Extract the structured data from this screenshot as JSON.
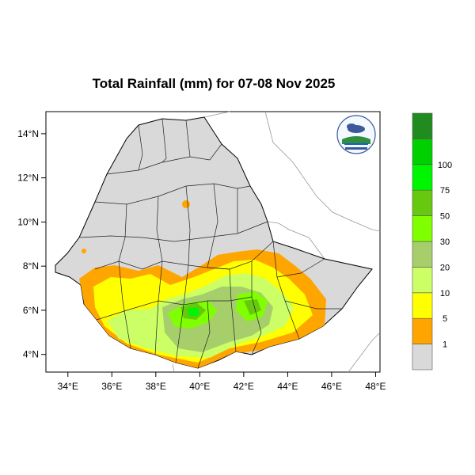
{
  "title": "Total Rainfall (mm) for 07-08 Nov 2025",
  "map": {
    "region": "Ethiopia",
    "lon_range": [
      33,
      48.2
    ],
    "lat_range": [
      3.2,
      15
    ],
    "x_ticks": [
      "34°E",
      "36°E",
      "38°E",
      "40°E",
      "42°E",
      "44°E",
      "46°E",
      "48°E"
    ],
    "y_ticks": [
      "14°N",
      "12°N",
      "10°N",
      "8°N",
      "6°N",
      "4°N"
    ]
  },
  "legend": {
    "classes": [
      {
        "color": "#d9d9d9"
      },
      {
        "color": "#ffa500",
        "label": "1"
      },
      {
        "color": "#ffff00",
        "label": "5"
      },
      {
        "color": "#ccff66",
        "label": "10"
      },
      {
        "color": "#a6cf6b",
        "label": "20"
      },
      {
        "color": "#80ff00",
        "label": "30"
      },
      {
        "color": "#66c90f",
        "label": "50"
      },
      {
        "color": "#00f500",
        "label": "75"
      },
      {
        "color": "#00d000",
        "label": "100"
      },
      {
        "color": "#208c20"
      }
    ]
  },
  "logo": {
    "icon": "ethiopian-meteorology-logo"
  }
}
